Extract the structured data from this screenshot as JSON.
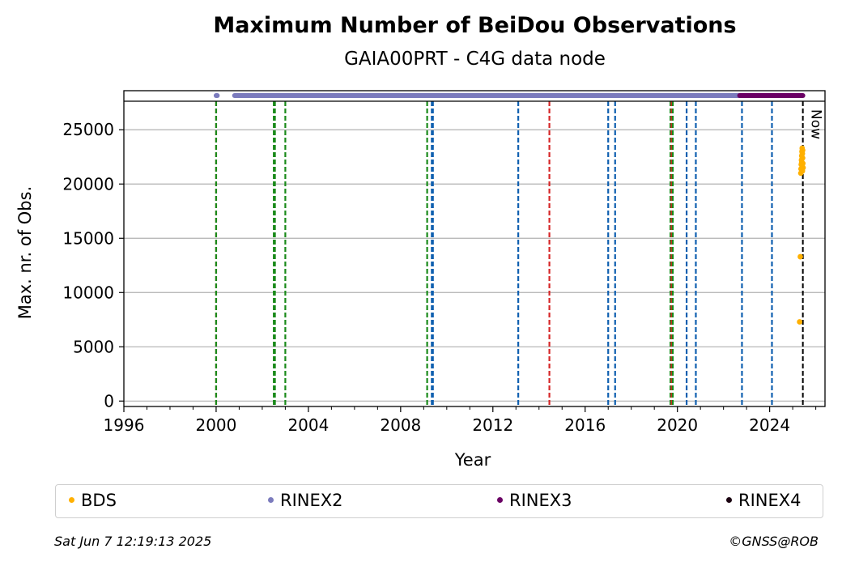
{
  "chart_data": {
    "type": "scatter",
    "title": "Maximum Number of BeiDou Observations",
    "subtitle": "GAIA00PRT - C4G data node",
    "xlabel": "Year",
    "ylabel": "Max. nr. of Obs.",
    "xlim": [
      1996,
      2026.4
    ],
    "ylim": [
      -500,
      28600
    ],
    "x_ticks": [
      1996,
      2000,
      2004,
      2008,
      2012,
      2016,
      2020,
      2024
    ],
    "y_ticks": [
      0,
      5000,
      10000,
      15000,
      20000,
      25000
    ],
    "grid": "horizontal",
    "legend_position": "bottom",
    "now_label": "Now",
    "now_year": 2025.44,
    "series": [
      {
        "name": "BDS",
        "color": "#ffb000",
        "x": [
          2025.3,
          2025.33,
          2025.35,
          2025.36,
          2025.37,
          2025.38,
          2025.39,
          2025.4,
          2025.41,
          2025.42,
          2025.43,
          2025.44,
          2025.45,
          2025.39,
          2025.41,
          2025.43,
          2025.4,
          2025.42
        ],
        "y": [
          7300,
          13300,
          21000,
          21400,
          21800,
          22200,
          22600,
          23000,
          23300,
          22800,
          22400,
          21900,
          21500,
          22000,
          21700,
          23100,
          22300,
          21200
        ]
      },
      {
        "name": "RINEX2",
        "color": "#7b7bbd",
        "ranges": [
          [
            2000.0,
            2000.05
          ],
          [
            2000.8,
            2022.7
          ]
        ]
      },
      {
        "name": "RINEX3",
        "color": "#6a0064",
        "ranges": [
          [
            2022.7,
            2025.44
          ]
        ]
      },
      {
        "name": "RINEX4",
        "color": "#1a0010",
        "ranges": []
      }
    ],
    "vlines": [
      {
        "x": 2000.0,
        "color": "#d62728"
      },
      {
        "x": 2000.0,
        "color": "#1a8a1a"
      },
      {
        "x": 2002.5,
        "color": "#1a8a1a"
      },
      {
        "x": 2002.55,
        "color": "#1a8a1a"
      },
      {
        "x": 2003.0,
        "color": "#1a8a1a"
      },
      {
        "x": 2009.15,
        "color": "#1a8a1a"
      },
      {
        "x": 2009.35,
        "color": "#1060b0"
      },
      {
        "x": 2009.4,
        "color": "#1060b0"
      },
      {
        "x": 2013.1,
        "color": "#1060b0"
      },
      {
        "x": 2014.45,
        "color": "#d62728"
      },
      {
        "x": 2017.0,
        "color": "#1060b0"
      },
      {
        "x": 2017.3,
        "color": "#1060b0"
      },
      {
        "x": 2019.7,
        "color": "#1a8a1a"
      },
      {
        "x": 2019.75,
        "color": "#d62728"
      },
      {
        "x": 2019.8,
        "color": "#1a8a1a"
      },
      {
        "x": 2020.4,
        "color": "#1060b0"
      },
      {
        "x": 2020.8,
        "color": "#1060b0"
      },
      {
        "x": 2022.8,
        "color": "#1060b0"
      },
      {
        "x": 2024.1,
        "color": "#1060b0"
      }
    ]
  },
  "footer": {
    "timestamp": "Sat Jun  7 12:19:13 2025",
    "credit": "©GNSS@ROB"
  }
}
